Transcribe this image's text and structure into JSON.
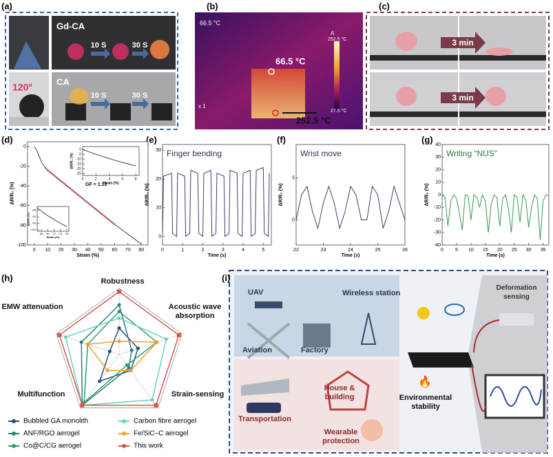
{
  "panel_labels": [
    "(a)",
    "(b)",
    "(c)",
    "(d)",
    "(e)",
    "(f)",
    "(g)",
    "(h)",
    "(i)"
  ],
  "panel_a": {
    "top_label": "Gd-CA",
    "bottom_label": "CA",
    "angle": "120°",
    "times": [
      "10 S",
      "30 S",
      "10 S",
      "30 S"
    ]
  },
  "panel_b": {
    "corner_temp": "66.5 °C",
    "scale_max": "252.5 °C",
    "scale_min": "27.5 °C",
    "scale_mode": "A",
    "zoom": "x 1",
    "point1": "66.5 °C",
    "point2": "252.5 °C"
  },
  "panel_c": {
    "arrows": [
      "3 min",
      "3 min"
    ]
  },
  "panel_i": {
    "uav": "UAV",
    "wireless": "Wireless station",
    "aviation": "Aviation",
    "factory": "Factory",
    "house": "House & building",
    "transportation": "Transportation",
    "wearable": "Wearable protection",
    "deformation": "Deformation sensing",
    "environmental": "Environmental stability"
  },
  "chart_data": [
    {
      "type": "line",
      "xlabel": "Strain (%)",
      "ylabel": "ΔR/R₀ (%)",
      "annotation": "GF = 1.13",
      "x": [
        0,
        2,
        4,
        6,
        8,
        10,
        20,
        30,
        40,
        50,
        60,
        70,
        80
      ],
      "xlim": [
        -5,
        85
      ],
      "xticks": [
        0,
        10,
        20,
        30,
        40,
        50,
        60,
        70,
        80
      ],
      "ylim": [
        -100,
        5
      ],
      "yticks": [
        0,
        -20,
        -40,
        -60,
        -80,
        -100
      ],
      "series": [
        {
          "color": "#3b3f6b",
          "values": [
            0,
            -4,
            -11,
            -17,
            -21,
            -24,
            -35,
            -46,
            -57,
            -68,
            -79,
            -89,
            -99
          ]
        },
        {
          "color": "#c0392b",
          "values": [
            null,
            null,
            null,
            null,
            -21,
            -24,
            -35,
            -46,
            -57,
            -68,
            -79,
            null,
            null
          ]
        }
      ]
    },
    {
      "type": "line",
      "xlabel": "Strain (%)",
      "ylabel": "ΔR/R₀ (%)",
      "x": [
        0,
        1,
        2,
        3,
        4,
        5,
        6,
        7,
        8
      ],
      "xlim": [
        0,
        8.5
      ],
      "xticks": [
        0,
        2,
        4,
        6,
        8
      ],
      "ylim": [
        -27,
        3
      ],
      "yticks": [
        0,
        -5,
        -10,
        -15,
        -20,
        -25
      ],
      "series": [
        {
          "color": "#3b3f6b",
          "values": [
            0,
            -2.5,
            -5,
            -7.2,
            -9.4,
            -11.5,
            -13.4,
            -15.3,
            -17
          ]
        }
      ]
    },
    {
      "type": "line",
      "xlabel": "Strain (%)",
      "ylabel": "ΔR/R₀ (%)",
      "x": [
        64,
        66,
        68,
        70,
        72,
        74,
        76,
        78
      ],
      "xlim": [
        64,
        79
      ],
      "xticks": [
        66,
        69,
        72,
        75,
        78
      ],
      "ylim": [
        -101,
        -82
      ],
      "yticks": [
        -85,
        -90,
        -95,
        -100
      ],
      "series": [
        {
          "color": "#3b3f6b",
          "values": [
            -83,
            -85.5,
            -88,
            -90,
            -92,
            -94,
            -95.8,
            -97.5
          ]
        }
      ]
    },
    {
      "type": "line",
      "title": "Finger bending",
      "xlabel": "Time (s)",
      "ylabel": "ΔR/R₀ (%)",
      "x": [
        0,
        0.05,
        0.45,
        0.5,
        0.7,
        0.75,
        1.1,
        1.15,
        1.35,
        1.4,
        1.75,
        1.8,
        2.0,
        2.05,
        2.4,
        2.45,
        2.65,
        2.7,
        3.05,
        3.1,
        3.3,
        3.35,
        3.7,
        3.75,
        3.95,
        4.0,
        4.35,
        4.4,
        4.6,
        4.65,
        5.0,
        5.05,
        5.25,
        5.3
      ],
      "xlim": [
        0,
        5.4
      ],
      "xticks": [
        0,
        1,
        2,
        3,
        4,
        5
      ],
      "ylim": [
        -3,
        32
      ],
      "yticks": [
        0,
        10,
        20,
        30
      ],
      "series": [
        {
          "color": "#3b3f6b",
          "values": [
            1,
            21,
            22,
            1,
            0,
            22,
            21,
            0,
            1,
            23,
            22,
            1,
            0,
            22,
            23,
            0,
            1,
            22,
            21,
            0,
            1,
            23,
            22,
            1,
            0,
            22,
            23,
            0,
            1,
            23,
            24,
            1,
            0,
            22
          ]
        }
      ]
    },
    {
      "type": "line",
      "title": "Wrist move",
      "xlabel": "Time (s)",
      "ylabel": "ΔR/R₀ (%)",
      "x": [
        22,
        22.2,
        22.4,
        22.6,
        22.8,
        23,
        23.2,
        23.4,
        23.6,
        23.8,
        24,
        24.2,
        24.4,
        24.6,
        24.8,
        25,
        25.2,
        25.4,
        25.6,
        25.8,
        26
      ],
      "xlim": [
        22,
        26
      ],
      "xticks": [
        22,
        23,
        24,
        25,
        26
      ],
      "ylim": [
        -3,
        9
      ],
      "yticks": [
        0,
        5
      ],
      "series": [
        {
          "color": "#3b3f6b",
          "values": [
            0,
            3,
            4,
            1,
            -1,
            2,
            4,
            2,
            -1,
            1,
            4,
            3,
            0,
            0,
            4,
            3,
            -1,
            1,
            4,
            2,
            0
          ]
        }
      ]
    },
    {
      "type": "line",
      "title": "Writing “NUS”",
      "xlabel": "Time (s)",
      "ylabel": "ΔR/R₀ (%)",
      "x": [
        0,
        1,
        2,
        3,
        4,
        5,
        6,
        7,
        8,
        9,
        10,
        11,
        12,
        13,
        14,
        15,
        16,
        17,
        18,
        19,
        20,
        21,
        22,
        23,
        24,
        25,
        26,
        27,
        28,
        29,
        30,
        31,
        32,
        33,
        34,
        35,
        36,
        37
      ],
      "xlim": [
        0,
        37
      ],
      "xticks": [
        0,
        5,
        10,
        15,
        20,
        25,
        30,
        35
      ],
      "ylim": [
        -40,
        40
      ],
      "yticks": [
        40,
        30,
        20,
        10,
        0,
        -10,
        -20,
        -30,
        -40
      ],
      "series": [
        {
          "color": "#3a9a4a",
          "values": [
            0,
            -2,
            -25,
            -5,
            0,
            -3,
            -15,
            -28,
            0,
            -1,
            -20,
            0,
            -2,
            -10,
            0,
            -5,
            -30,
            -8,
            0,
            -2,
            -25,
            -3,
            0,
            -12,
            -30,
            0,
            -2,
            -22,
            0,
            -4,
            -26,
            -10,
            0,
            -3,
            -36,
            -5,
            0,
            -1
          ]
        }
      ]
    },
    {
      "type": "radar",
      "categories": [
        "Robustness",
        "Acoustic wave absorption",
        "Strain-sensing",
        "Multifunction",
        "EMW attenuation"
      ],
      "rlim": [
        0,
        1
      ],
      "series": [
        {
          "name": "Bubbled GA monolith",
          "color": "#1f4e79",
          "values": [
            0.4,
            0.3,
            0.3,
            0.5,
            0.15
          ]
        },
        {
          "name": "ANF/RGO aerogel",
          "color": "#2e7d7a",
          "values": [
            0.75,
            0.2,
            0.25,
            0.95,
            0.6
          ]
        },
        {
          "name": "Co@C/CG aerogel",
          "color": "#2a9d6f",
          "values": [
            0.65,
            0.6,
            0.2,
            0.9,
            0.5
          ]
        },
        {
          "name": "Carbon fibre aerogel",
          "color": "#66d4c0",
          "values": [
            0.55,
            0.75,
            0.85,
            0.95,
            0.85
          ]
        },
        {
          "name": "Fe/SiC–C aerogel",
          "color": "#f0a020",
          "values": [
            0.2,
            0.6,
            0.3,
            0.3,
            0.5
          ]
        },
        {
          "name": "This work",
          "color": "#d9534f",
          "values": [
            0.95,
            0.95,
            0.95,
            0.95,
            0.95
          ]
        }
      ]
    }
  ]
}
